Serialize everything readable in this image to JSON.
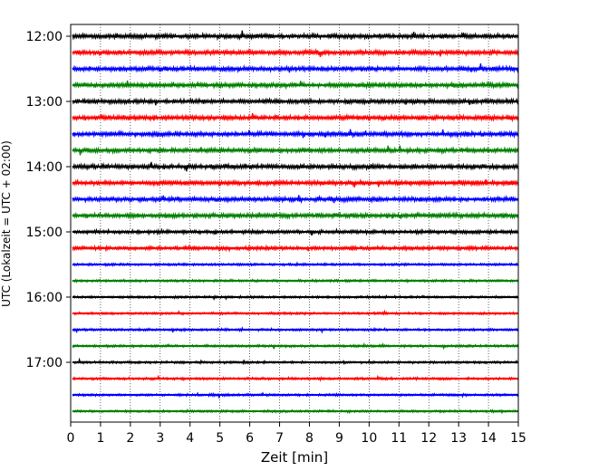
{
  "chart_data": {
    "type": "line",
    "subtype": "seismogram-helicorder",
    "xlabel": "Zeit  [min]",
    "ylabel": "UTC (Lokalzeit = UTC + 02:00)",
    "xlim": [
      0,
      15
    ],
    "x_ticks": [
      "0",
      "1",
      "2",
      "3",
      "4",
      "5",
      "6",
      "7",
      "8",
      "9",
      "10",
      "11",
      "12",
      "13",
      "14",
      "15"
    ],
    "y_ticks": [
      "12:00",
      "13:00",
      "14:00",
      "15:00",
      "16:00",
      "17:00"
    ],
    "vertical_grid": "dotted",
    "trace_interval_min": 15,
    "trace_colors": [
      "#000000",
      "#ff0000",
      "#0000ff",
      "#008000"
    ],
    "traces": [
      {
        "start": "12:00",
        "color": "#000000",
        "amplitude": "high"
      },
      {
        "start": "12:15",
        "color": "#ff0000",
        "amplitude": "high"
      },
      {
        "start": "12:30",
        "color": "#0000ff",
        "amplitude": "high"
      },
      {
        "start": "12:45",
        "color": "#008000",
        "amplitude": "high"
      },
      {
        "start": "13:00",
        "color": "#000000",
        "amplitude": "high"
      },
      {
        "start": "13:15",
        "color": "#ff0000",
        "amplitude": "high"
      },
      {
        "start": "13:30",
        "color": "#0000ff",
        "amplitude": "high"
      },
      {
        "start": "13:45",
        "color": "#008000",
        "amplitude": "high"
      },
      {
        "start": "14:00",
        "color": "#000000",
        "amplitude": "high"
      },
      {
        "start": "14:15",
        "color": "#ff0000",
        "amplitude": "high"
      },
      {
        "start": "14:30",
        "color": "#0000ff",
        "amplitude": "high"
      },
      {
        "start": "14:45",
        "color": "#008000",
        "amplitude": "high"
      },
      {
        "start": "15:00",
        "color": "#000000",
        "amplitude": "medium"
      },
      {
        "start": "15:15",
        "color": "#ff0000",
        "amplitude": "medium"
      },
      {
        "start": "15:30",
        "color": "#0000ff",
        "amplitude": "low"
      },
      {
        "start": "15:45",
        "color": "#008000",
        "amplitude": "low"
      },
      {
        "start": "16:00",
        "color": "#000000",
        "amplitude": "low"
      },
      {
        "start": "16:15",
        "color": "#ff0000",
        "amplitude": "low"
      },
      {
        "start": "16:30",
        "color": "#0000ff",
        "amplitude": "low"
      },
      {
        "start": "16:45",
        "color": "#008000",
        "amplitude": "low"
      },
      {
        "start": "17:00",
        "color": "#000000",
        "amplitude": "low"
      },
      {
        "start": "17:15",
        "color": "#ff0000",
        "amplitude": "low"
      },
      {
        "start": "17:30",
        "color": "#0000ff",
        "amplitude": "low"
      },
      {
        "start": "17:45",
        "color": "#008000",
        "amplitude": "low"
      }
    ]
  }
}
